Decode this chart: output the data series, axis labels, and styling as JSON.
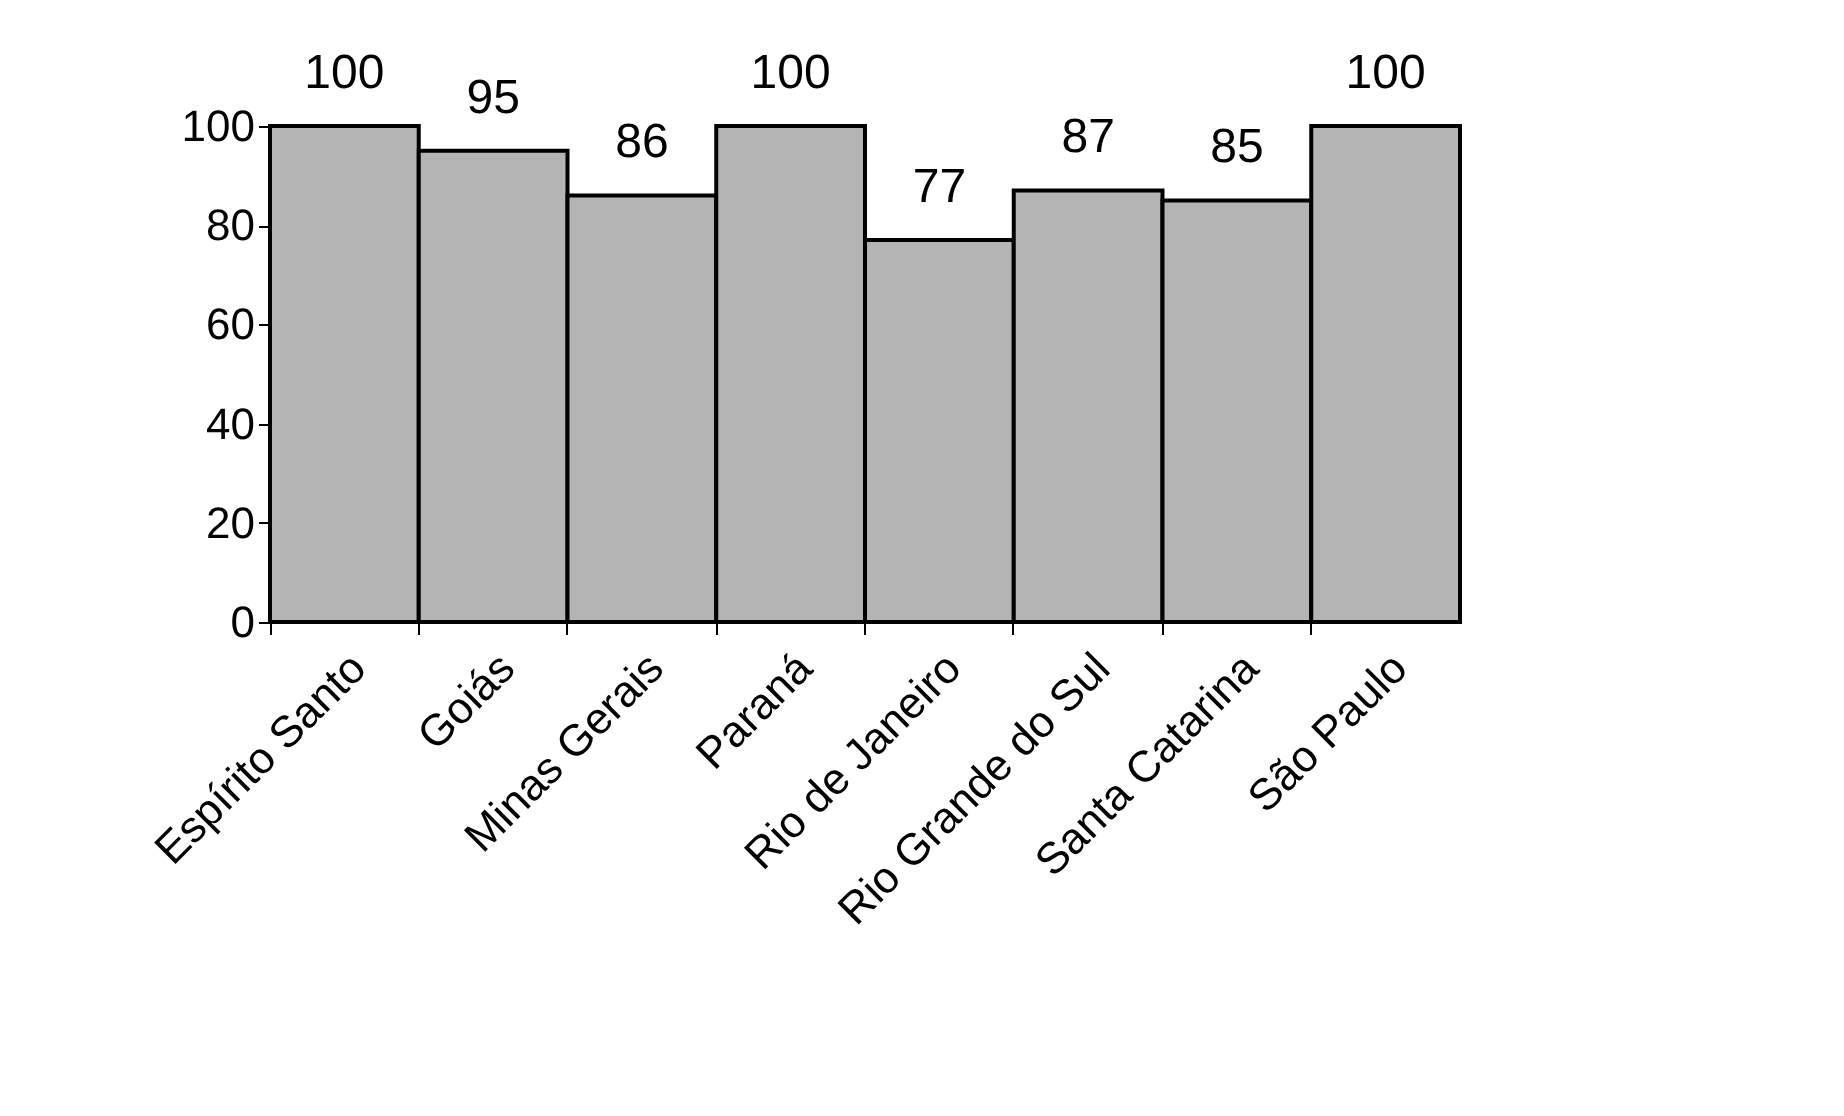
{
  "chart_data": {
    "type": "bar",
    "categories": [
      "Espírito Santo",
      "Goiás",
      "Minas Gerais",
      "Paraná",
      "Rio de Janeiro",
      "Rio Grande do Sul",
      "Santa Catarina",
      "São Paulo"
    ],
    "values": [
      100,
      95,
      86,
      100,
      77,
      87,
      85,
      100
    ],
    "color": "#b4b4b4",
    "ylim": [
      0,
      100
    ],
    "yticks": [
      0,
      20,
      40,
      60,
      80,
      100
    ],
    "grid": false,
    "data_labels": true
  }
}
